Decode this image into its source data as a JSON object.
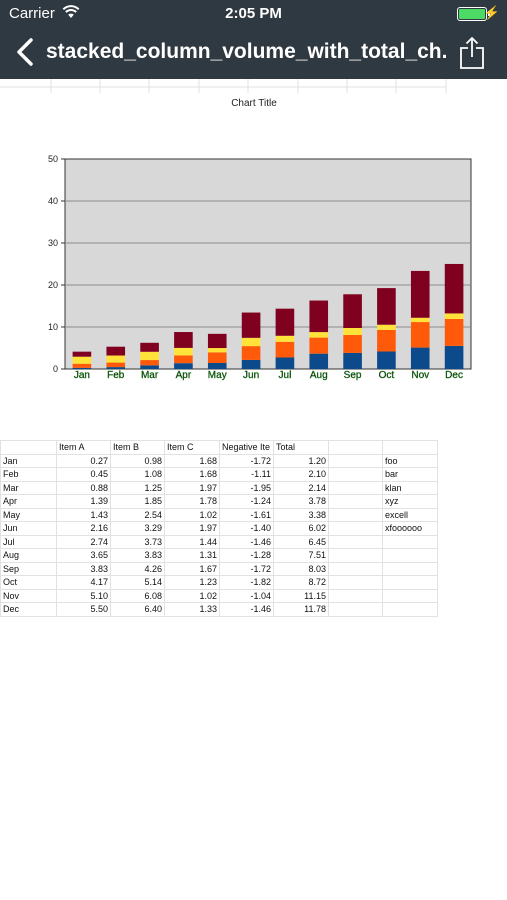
{
  "status_bar": {
    "carrier": "Carrier",
    "time": "2:05 PM"
  },
  "nav": {
    "title": "stacked_column_volume_with_total_ch..."
  },
  "chart_data": {
    "type": "bar",
    "stacked": true,
    "title": "Chart Title",
    "categories": [
      "Jan",
      "Feb",
      "Mar",
      "Apr",
      "May",
      "Jun",
      "Jul",
      "Aug",
      "Sep",
      "Oct",
      "Nov",
      "Dec"
    ],
    "series": [
      {
        "values": [
          0.27,
          0.45,
          0.88,
          1.39,
          1.43,
          2.16,
          2.74,
          3.65,
          3.83,
          4.17,
          5.1,
          5.5
        ],
        "color": "#0d4a8c"
      },
      {
        "values": [
          0.98,
          1.08,
          1.25,
          1.85,
          2.54,
          3.29,
          3.73,
          3.83,
          4.26,
          5.14,
          6.08,
          6.4
        ],
        "color": "#ff5a0a"
      },
      {
        "values": [
          1.68,
          1.68,
          1.97,
          1.78,
          1.02,
          1.97,
          1.44,
          1.31,
          1.67,
          1.23,
          1.02,
          1.33
        ],
        "color": "#ffe23a"
      },
      {
        "values": [
          1.2,
          2.1,
          2.14,
          3.78,
          3.38,
          6.02,
          6.45,
          7.51,
          8.03,
          8.72,
          11.15,
          11.78
        ],
        "color": "#800020"
      }
    ],
    "ylim": [
      0,
      50
    ],
    "yticks": [
      0,
      10,
      20,
      30,
      40,
      50
    ],
    "grid": true,
    "plot_background": "#d8d8d8"
  },
  "table": {
    "headers": [
      "",
      "Item A",
      "Item B",
      "Item C",
      "Negative Ite",
      "Total",
      "",
      ""
    ],
    "rows": [
      [
        "Jan",
        "0.27",
        "0.98",
        "1.68",
        "-1.72",
        "1.20",
        "",
        "foo"
      ],
      [
        "Feb",
        "0.45",
        "1.08",
        "1.68",
        "-1.11",
        "2.10",
        "",
        "bar"
      ],
      [
        "Mar",
        "0.88",
        "1.25",
        "1.97",
        "-1.95",
        "2.14",
        "",
        "klan"
      ],
      [
        "Apr",
        "1.39",
        "1.85",
        "1.78",
        "-1.24",
        "3.78",
        "",
        "xyz"
      ],
      [
        "May",
        "1.43",
        "2.54",
        "1.02",
        "-1.61",
        "3.38",
        "",
        "excell"
      ],
      [
        "Jun",
        "2.16",
        "3.29",
        "1.97",
        "-1.40",
        "6.02",
        "",
        "xfoooooo"
      ],
      [
        "Jul",
        "2.74",
        "3.73",
        "1.44",
        "-1.46",
        "6.45",
        "",
        ""
      ],
      [
        "Aug",
        "3.65",
        "3.83",
        "1.31",
        "-1.28",
        "7.51",
        "",
        ""
      ],
      [
        "Sep",
        "3.83",
        "4.26",
        "1.67",
        "-1.72",
        "8.03",
        "",
        ""
      ],
      [
        "Oct",
        "4.17",
        "5.14",
        "1.23",
        "-1.82",
        "8.72",
        "",
        ""
      ],
      [
        "Nov",
        "5.10",
        "6.08",
        "1.02",
        "-1.04",
        "11.15",
        "",
        ""
      ],
      [
        "Dec",
        "5.50",
        "6.40",
        "1.33",
        "-1.46",
        "11.78",
        "",
        ""
      ]
    ]
  },
  "colors": {
    "navbar": "#2f3941",
    "battery": "#4cd964"
  }
}
